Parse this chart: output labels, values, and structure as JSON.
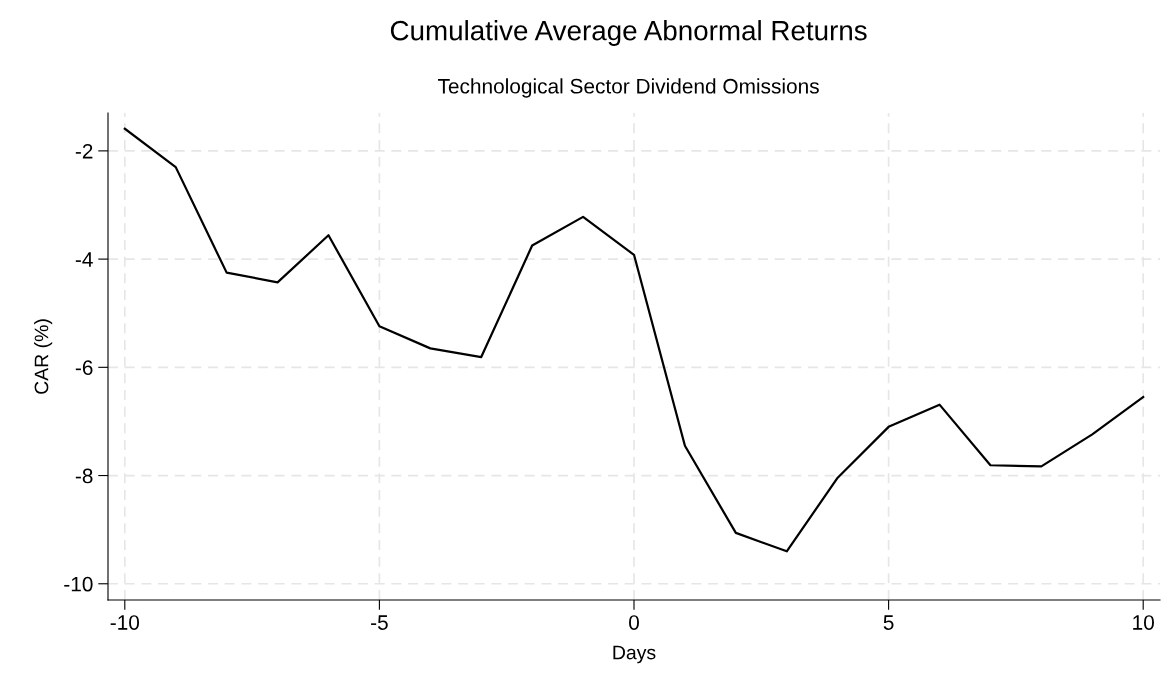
{
  "chart_data": {
    "type": "line",
    "title": "Cumulative Average Abnormal Returns",
    "subtitle": "Technological Sector Dividend Omissions",
    "xlabel": "Days",
    "ylabel": "CAR (%)",
    "x": [
      -10,
      -9,
      -8,
      -7,
      -6,
      -5,
      -4,
      -3,
      -2,
      -1,
      0,
      1,
      2,
      3,
      4,
      5,
      6,
      7,
      8,
      9,
      10
    ],
    "series": [
      {
        "color": "#000000",
        "values": [
          -1.59,
          -2.3,
          -4.25,
          -4.43,
          -3.56,
          -5.24,
          -5.65,
          -5.81,
          -3.75,
          -3.22,
          -3.92,
          -7.45,
          -9.06,
          -9.4,
          -8.04,
          -7.1,
          -6.69,
          -7.81,
          -7.83,
          -7.24,
          -6.55
        ]
      }
    ],
    "xlim": [
      -10.33,
      10.33
    ],
    "ylim": [
      -10.3,
      -1.3
    ],
    "xticks": [
      -10,
      -5,
      0,
      5,
      10
    ],
    "yticks": [
      -10,
      -8,
      -6,
      -4,
      -2
    ],
    "grid": true,
    "marker": "none",
    "line_style": "solid"
  }
}
